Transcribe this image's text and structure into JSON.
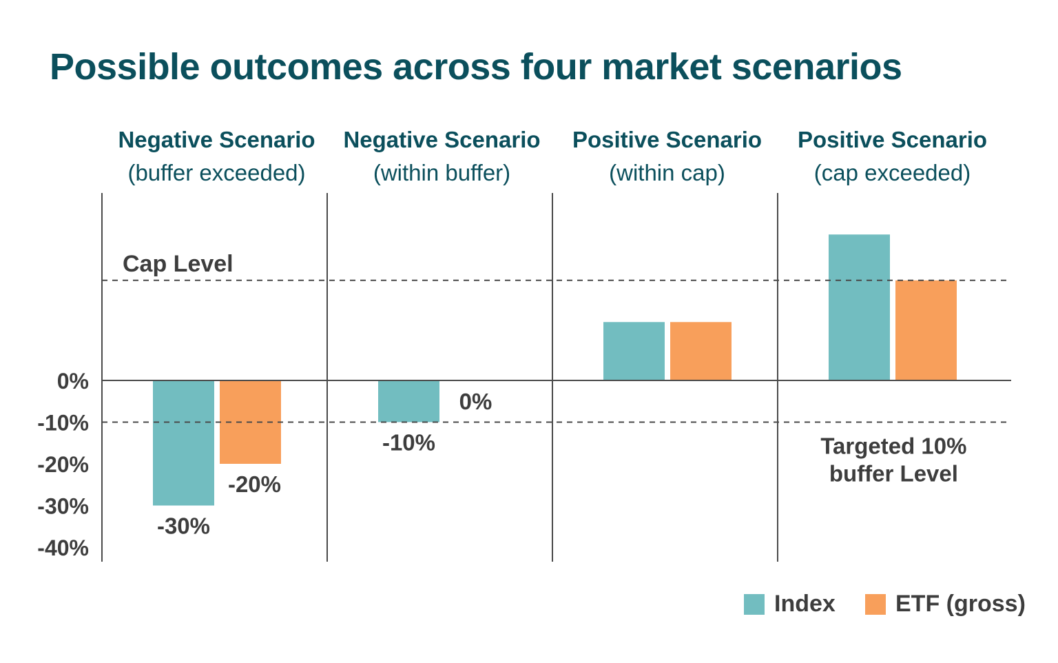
{
  "title": "Possible outcomes across four market scenarios",
  "colors": {
    "title": "#0b4f5c",
    "index": "#72bdc0",
    "etf": "#f89f5b",
    "text": "#3d3d3d",
    "axis": "#4a4a4a"
  },
  "legend": {
    "index_label": "Index",
    "etf_label": "ETF (gross)"
  },
  "chart_data": {
    "type": "bar",
    "categories": [
      {
        "line1": "Negative Scenario",
        "line2": "(buffer exceeded)"
      },
      {
        "line1": "Negative Scenario",
        "line2": "(within buffer)"
      },
      {
        "line1": "Positive Scenario",
        "line2": "(within cap)"
      },
      {
        "line1": "Positive Scenario",
        "line2": "(cap exceeded)"
      }
    ],
    "series": [
      {
        "name": "Index",
        "values": [
          -30,
          -10,
          14,
          35
        ]
      },
      {
        "name": "ETF (gross)",
        "values": [
          -20,
          0,
          14,
          24
        ]
      }
    ],
    "data_labels": [
      {
        "series": 0,
        "category": 0,
        "text": "-30%"
      },
      {
        "series": 1,
        "category": 0,
        "text": "-20%"
      },
      {
        "series": 0,
        "category": 1,
        "text": "-10%"
      },
      {
        "series": 1,
        "category": 1,
        "text": "0%"
      }
    ],
    "y_ticks": [
      "0%",
      "-10%",
      "-20%",
      "-30%",
      "-40%"
    ],
    "y_tick_values": [
      0,
      -10,
      -20,
      -30,
      -40
    ],
    "ylim": [
      -43,
      45
    ],
    "reference_lines": [
      {
        "value": 24,
        "label": "Cap Level"
      },
      {
        "value": -10,
        "label_line1": "Targeted 10%",
        "label_line2": "buffer Level"
      }
    ],
    "grid": false,
    "legend_position": "bottom-right"
  }
}
